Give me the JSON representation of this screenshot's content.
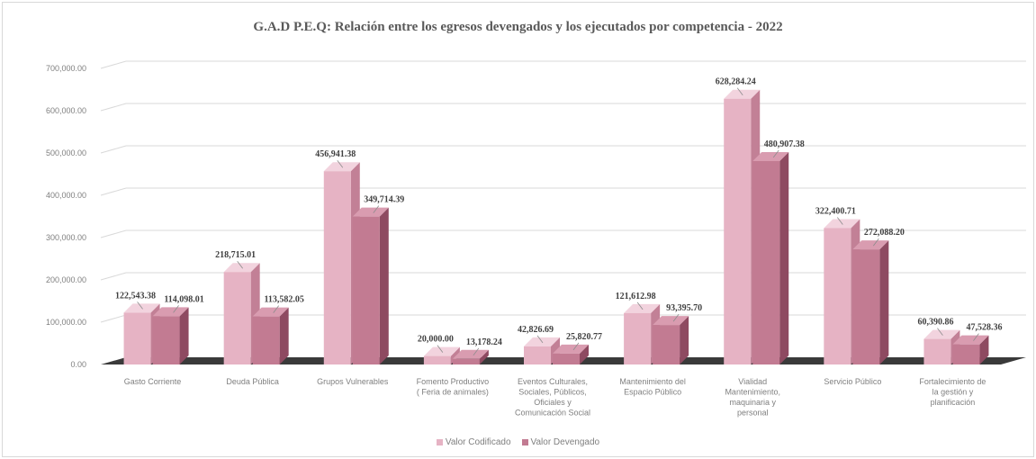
{
  "chart_data": {
    "type": "bar",
    "title": "G.A.D P.E.Q: Relación entre los egresos devengados y los ejecutados por competencia - 2022",
    "categories": [
      [
        "Gasto Corriente"
      ],
      [
        "Deuda Pública"
      ],
      [
        "Grupos Vulnerables"
      ],
      [
        "Fomento Productivo",
        "( Feria de animales)"
      ],
      [
        "Eventos Culturales,",
        "Sociales, Públicos,",
        "Oficiales y",
        "Comunicación Social"
      ],
      [
        "Mantenimiento del",
        "Espacio Público"
      ],
      [
        "Vialidad",
        "Mantenimiento,",
        "maquinaria y",
        "personal"
      ],
      [
        "Servicio Público"
      ],
      [
        "Fortalecimiento de",
        "la gestión y",
        "planificación"
      ]
    ],
    "series": [
      {
        "name": "Valor Codificado",
        "values": [
          122543.38,
          218715.01,
          456941.38,
          20000.0,
          42826.69,
          121612.98,
          628284.24,
          322400.71,
          60390.86
        ],
        "labels": [
          "122,543.38",
          "218,715.01",
          "456,941.38",
          "20,000.00",
          "42,826.69",
          "121,612.98",
          "628,284.24",
          "322,400.71",
          "60,390.86"
        ]
      },
      {
        "name": "Valor Devengado",
        "values": [
          114098.01,
          113582.05,
          349714.39,
          13178.24,
          25820.77,
          93395.7,
          480907.38,
          272088.2,
          47528.36
        ],
        "labels": [
          "114,098.01",
          "113,582.05",
          "349,714.39",
          "13,178.24",
          "25,820.77",
          "93,395.70",
          "480,907.38",
          "272,088.20",
          "47,528.36"
        ]
      }
    ],
    "yticks": [
      {
        "value": 0,
        "label": "0.00"
      },
      {
        "value": 100000,
        "label": "100,000.00"
      },
      {
        "value": 200000,
        "label": "200,000.00"
      },
      {
        "value": 300000,
        "label": "300,000.00"
      },
      {
        "value": 400000,
        "label": "400,000.00"
      },
      {
        "value": 500000,
        "label": "500,000.00"
      },
      {
        "value": 600000,
        "label": "600,000.00"
      },
      {
        "value": 700000,
        "label": "700,000.00"
      }
    ],
    "ylim": [
      0,
      700000
    ],
    "grid": true,
    "legend_position": "bottom",
    "colors": {
      "Valor Codificado": {
        "front": "#e6b3c4",
        "side": "#c28096",
        "top": "#f2d3de"
      },
      "Valor Devengado": {
        "front": "#c27b92",
        "side": "#8e4a61",
        "top": "#d99cb0"
      },
      "floor": "#3a3a3a",
      "grid": "#d9d9d9"
    }
  }
}
